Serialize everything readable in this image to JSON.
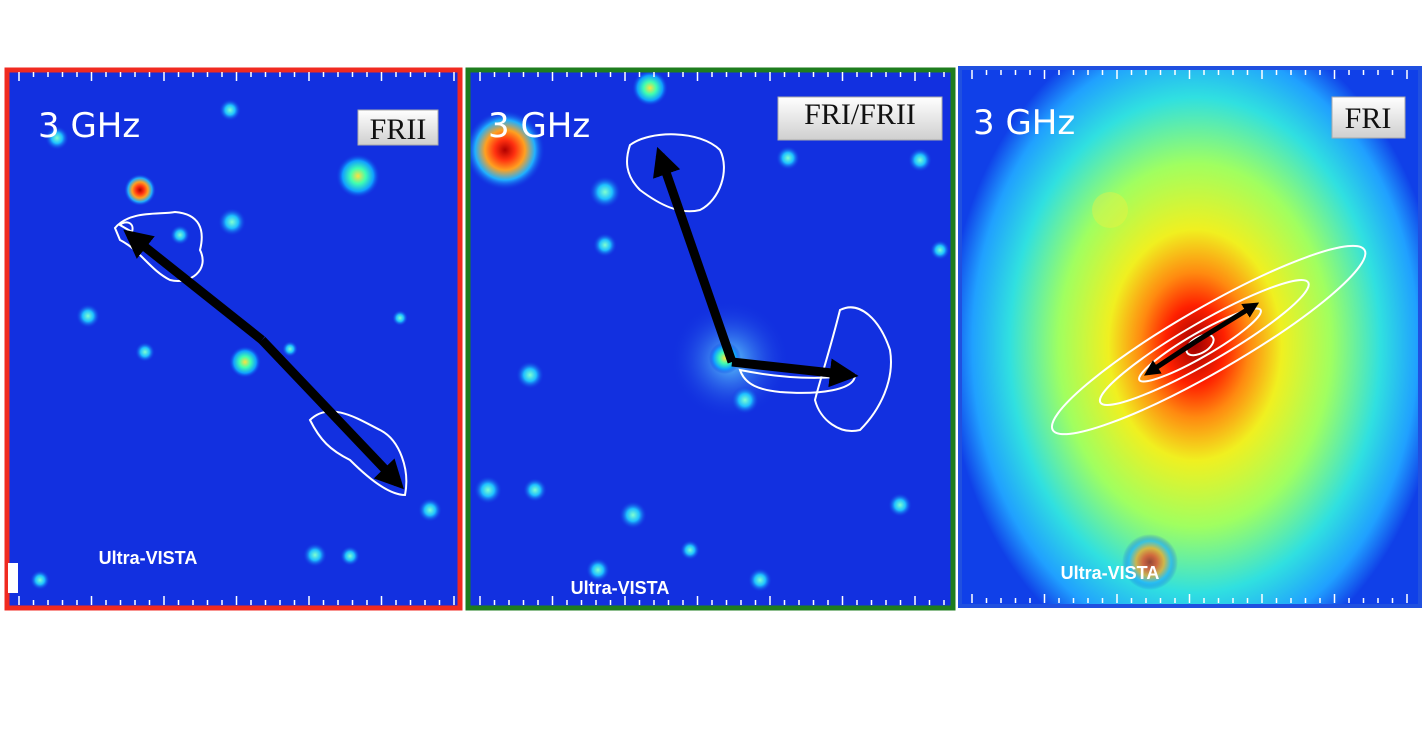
{
  "panels": [
    {
      "band": "3 GHz",
      "class": "FRII",
      "survey": "Ultra-VISTA"
    },
    {
      "band": "3 GHz",
      "class": "FRI/FRII",
      "survey": "Ultra-VISTA"
    },
    {
      "band": "3 GHz",
      "class": "FRI",
      "survey": "Ultra-VISTA"
    }
  ]
}
